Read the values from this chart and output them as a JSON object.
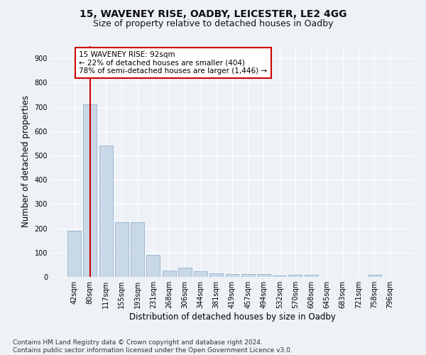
{
  "title1": "15, WAVENEY RISE, OADBY, LEICESTER, LE2 4GG",
  "title2": "Size of property relative to detached houses in Oadby",
  "xlabel": "Distribution of detached houses by size in Oadby",
  "ylabel": "Number of detached properties",
  "categories": [
    "42sqm",
    "80sqm",
    "117sqm",
    "155sqm",
    "193sqm",
    "231sqm",
    "268sqm",
    "306sqm",
    "344sqm",
    "381sqm",
    "419sqm",
    "457sqm",
    "494sqm",
    "532sqm",
    "570sqm",
    "608sqm",
    "645sqm",
    "683sqm",
    "721sqm",
    "758sqm",
    "796sqm"
  ],
  "values": [
    190,
    710,
    540,
    225,
    225,
    90,
    27,
    37,
    24,
    14,
    13,
    13,
    12,
    7,
    10,
    9,
    0,
    0,
    0,
    8,
    0
  ],
  "bar_color": "#c8d8e8",
  "bar_edgecolor": "#a0b8cc",
  "vline_x": 1,
  "vline_color": "#cc0000",
  "annotation_line1": "15 WAVENEY RISE: 92sqm",
  "annotation_line2": "← 22% of detached houses are smaller (404)",
  "annotation_line3": "78% of semi-detached houses are larger (1,446) →",
  "annotation_box_color": "#ffffff",
  "annotation_box_edgecolor": "#cc0000",
  "ylim": [
    0,
    950
  ],
  "yticks": [
    0,
    100,
    200,
    300,
    400,
    500,
    600,
    700,
    800,
    900
  ],
  "footnote": "Contains HM Land Registry data © Crown copyright and database right 2024.\nContains public sector information licensed under the Open Government Licence v3.0.",
  "background_color": "#eef2f7",
  "grid_color": "#ffffff",
  "title1_fontsize": 10,
  "title2_fontsize": 9,
  "xlabel_fontsize": 8.5,
  "ylabel_fontsize": 8.5,
  "footnote_fontsize": 6.5,
  "tick_fontsize": 7,
  "annotation_fontsize": 7.5
}
